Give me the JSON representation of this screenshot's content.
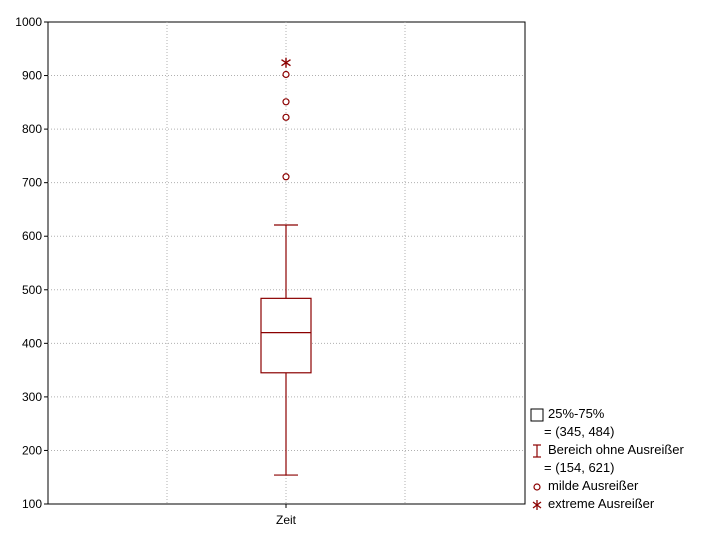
{
  "chart_data": {
    "type": "box",
    "category": "Zeit",
    "ylim": [
      100,
      1000
    ],
    "yticks": [
      "100",
      "200",
      "300",
      "400",
      "500",
      "600",
      "700",
      "800",
      "900",
      "1000"
    ],
    "grid": true,
    "box": {
      "q1": 345,
      "median": 420,
      "q3": 484,
      "whisker_low": 154,
      "whisker_high": 621
    },
    "mild_outliers": [
      711,
      822,
      851,
      902
    ],
    "extreme_outliers": [
      924
    ],
    "color": "#8b0000",
    "legend": {
      "placement": "bottom-right",
      "box_label": "25%-75%",
      "box_range": "= (345, 484)",
      "whisker_label": "Bereich ohne Ausreißer",
      "whisker_range": "= (154, 621)",
      "mild_label": "milde Ausreißer",
      "extreme_label": "extreme Ausreißer"
    }
  }
}
